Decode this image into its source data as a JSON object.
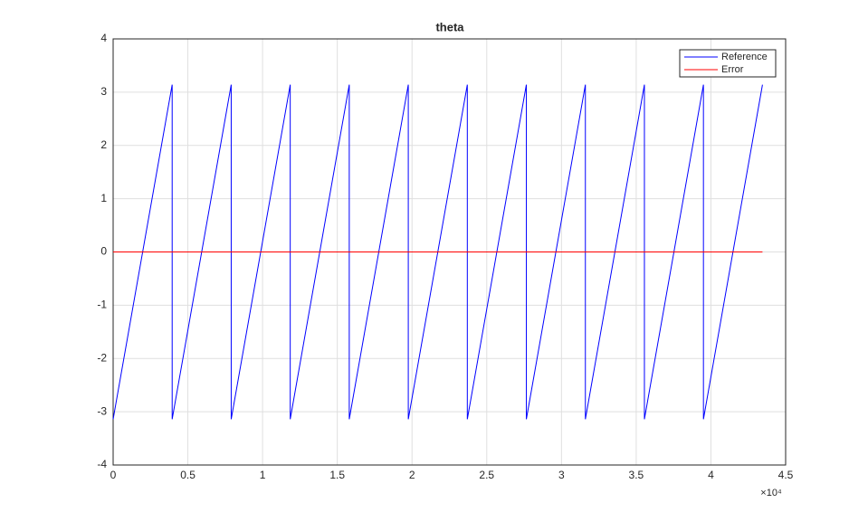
{
  "chart_data": {
    "type": "line",
    "title": "theta",
    "x_exponent_label": "×10⁴",
    "series": [
      {
        "name": "Reference",
        "color": "#0000ff",
        "x": [
          0,
          0.395,
          0.395,
          0.79,
          0.79,
          1.185,
          1.185,
          1.58,
          1.58,
          1.975,
          1.975,
          2.37,
          2.37,
          2.765,
          2.765,
          3.16,
          3.16,
          3.555,
          3.555,
          3.95,
          3.95,
          4.345
        ],
        "values": [
          -3.14,
          3.14,
          -3.14,
          3.14,
          -3.14,
          3.14,
          -3.14,
          3.14,
          -3.14,
          3.14,
          -3.14,
          3.14,
          -3.14,
          3.14,
          -3.14,
          3.14,
          -3.14,
          3.14,
          -3.14,
          3.14,
          -3.14,
          3.14
        ]
      },
      {
        "name": "Error",
        "color": "#ff0000",
        "x": [
          0,
          4.345
        ],
        "values": [
          0,
          0
        ]
      }
    ],
    "xlim": [
      0,
      4.5
    ],
    "xticks": [
      0,
      0.5,
      1,
      1.5,
      2,
      2.5,
      3,
      3.5,
      4,
      4.5
    ],
    "ylim": [
      -4,
      4
    ],
    "yticks": [
      -4,
      -3,
      -2,
      -1,
      0,
      1,
      2,
      3,
      4
    ],
    "grid": true,
    "legend": "top-right"
  }
}
